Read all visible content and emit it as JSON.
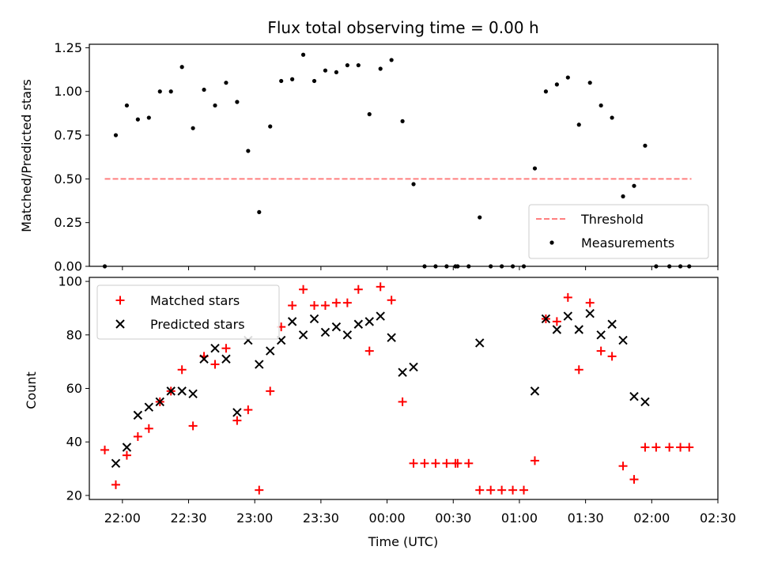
{
  "colors": {
    "threshold": "#ff7f7f",
    "measurements": "#000000",
    "matched": "#ff0000",
    "predicted": "#000000"
  },
  "chart_data": [
    {
      "type": "scatter",
      "title": "Flux total observing time = 0.00 h",
      "xlabel": "",
      "ylabel": "Matched/Predicted stars",
      "x_tick_labels": [
        "22:00",
        "22:30",
        "23:00",
        "23:30",
        "00:00",
        "00:30",
        "01:00",
        "01:30",
        "02:00",
        "02:30"
      ],
      "y_tick_labels": [
        "0.00",
        "0.25",
        "0.50",
        "0.75",
        "1.00",
        "1.25"
      ],
      "ylim": [
        0,
        1.27
      ],
      "xlim": [
        "21:45",
        "02:30"
      ],
      "legend_position": "lower right",
      "legend": [
        "Threshold",
        "Measurements"
      ],
      "threshold": {
        "name": "Threshold",
        "y": 0.5,
        "x_start": "21:52",
        "x_end": "02:18"
      },
      "series": [
        {
          "name": "Measurements",
          "x": [
            "21:52",
            "21:57",
            "22:02",
            "22:07",
            "22:12",
            "22:17",
            "22:22",
            "22:27",
            "22:32",
            "22:37",
            "22:42",
            "22:47",
            "22:52",
            "22:57",
            "23:02",
            "23:07",
            "23:12",
            "23:17",
            "23:22",
            "23:27",
            "23:32",
            "23:37",
            "23:42",
            "23:47",
            "23:52",
            "23:57",
            "00:02",
            "00:07",
            "00:12",
            "00:17",
            "00:22",
            "00:27",
            "00:31",
            "00:32",
            "00:37",
            "00:42",
            "00:47",
            "00:52",
            "00:57",
            "01:02",
            "01:07",
            "01:12",
            "01:17",
            "01:22",
            "01:27",
            "01:32",
            "01:37",
            "01:42",
            "01:47",
            "01:52",
            "01:57",
            "02:02",
            "02:08",
            "02:13",
            "02:17"
          ],
          "y": [
            0.0,
            0.75,
            0.92,
            0.84,
            0.85,
            1.0,
            1.0,
            1.14,
            0.79,
            1.01,
            0.92,
            1.05,
            0.94,
            0.66,
            0.31,
            0.8,
            1.06,
            1.07,
            1.21,
            1.06,
            1.12,
            1.11,
            1.15,
            1.15,
            0.87,
            1.13,
            1.18,
            0.83,
            0.47,
            0.0,
            0.0,
            0.0,
            0.0,
            0.0,
            0.0,
            0.28,
            0.0,
            0.0,
            0.0,
            0.0,
            0.56,
            1.0,
            1.04,
            1.08,
            0.81,
            1.05,
            0.92,
            0.85,
            0.4,
            0.46,
            0.69,
            0.0,
            0.0,
            0.0,
            0.0
          ]
        }
      ]
    },
    {
      "type": "scatter",
      "title": "",
      "xlabel": "Time (UTC)",
      "ylabel": "Count",
      "x_tick_labels": [
        "22:00",
        "22:30",
        "23:00",
        "23:30",
        "00:00",
        "00:30",
        "01:00",
        "01:30",
        "02:00",
        "02:30"
      ],
      "y_tick_labels": [
        "20",
        "40",
        "60",
        "80",
        "100"
      ],
      "ylim": [
        18.5,
        101.5
      ],
      "xlim": [
        "21:45",
        "02:30"
      ],
      "legend_position": "upper left",
      "legend": [
        "Matched stars",
        "Predicted stars"
      ],
      "series": [
        {
          "name": "Matched stars",
          "marker": "+",
          "x": [
            "21:52",
            "21:57",
            "22:02",
            "22:07",
            "22:12",
            "22:17",
            "22:22",
            "22:27",
            "22:32",
            "22:37",
            "22:42",
            "22:47",
            "22:52",
            "22:57",
            "23:02",
            "23:07",
            "23:12",
            "23:17",
            "23:22",
            "23:27",
            "23:32",
            "23:37",
            "23:42",
            "23:47",
            "23:52",
            "23:57",
            "00:02",
            "00:07",
            "00:12",
            "00:17",
            "00:22",
            "00:27",
            "00:31",
            "00:32",
            "00:37",
            "00:42",
            "00:47",
            "00:52",
            "00:57",
            "01:02",
            "01:07",
            "01:12",
            "01:17",
            "01:22",
            "01:27",
            "01:32",
            "01:37",
            "01:42",
            "01:47",
            "01:52",
            "01:57",
            "02:02",
            "02:08",
            "02:13",
            "02:17"
          ],
          "y": [
            37,
            24,
            35,
            42,
            45,
            55,
            59,
            67,
            46,
            72,
            69,
            75,
            48,
            52,
            22,
            59,
            83,
            91,
            97,
            91,
            91,
            92,
            92,
            97,
            74,
            98,
            93,
            55,
            32,
            32,
            32,
            32,
            32,
            32,
            32,
            22,
            22,
            22,
            22,
            22,
            33,
            86,
            85,
            94,
            67,
            92,
            74,
            72,
            31,
            26,
            38,
            38,
            38,
            38,
            38
          ]
        },
        {
          "name": "Predicted stars",
          "marker": "x",
          "x": [
            "21:57",
            "22:02",
            "22:07",
            "22:12",
            "22:17",
            "22:22",
            "22:27",
            "22:32",
            "22:37",
            "22:42",
            "22:47",
            "22:52",
            "22:57",
            "23:02",
            "23:07",
            "23:12",
            "23:17",
            "23:22",
            "23:27",
            "23:32",
            "23:37",
            "23:42",
            "23:47",
            "23:52",
            "23:57",
            "00:02",
            "00:07",
            "00:12",
            "00:42",
            "01:07",
            "01:12",
            "01:17",
            "01:22",
            "01:27",
            "01:32",
            "01:37",
            "01:42",
            "01:47",
            "01:52",
            "01:57"
          ],
          "y": [
            32,
            38,
            50,
            53,
            55,
            59,
            59,
            58,
            71,
            75,
            71,
            51,
            78,
            69,
            74,
            78,
            85,
            80,
            86,
            81,
            83,
            80,
            84,
            85,
            87,
            79,
            66,
            68,
            77,
            59,
            86,
            82,
            87,
            82,
            88,
            80,
            84,
            78,
            57,
            55
          ]
        }
      ]
    }
  ]
}
